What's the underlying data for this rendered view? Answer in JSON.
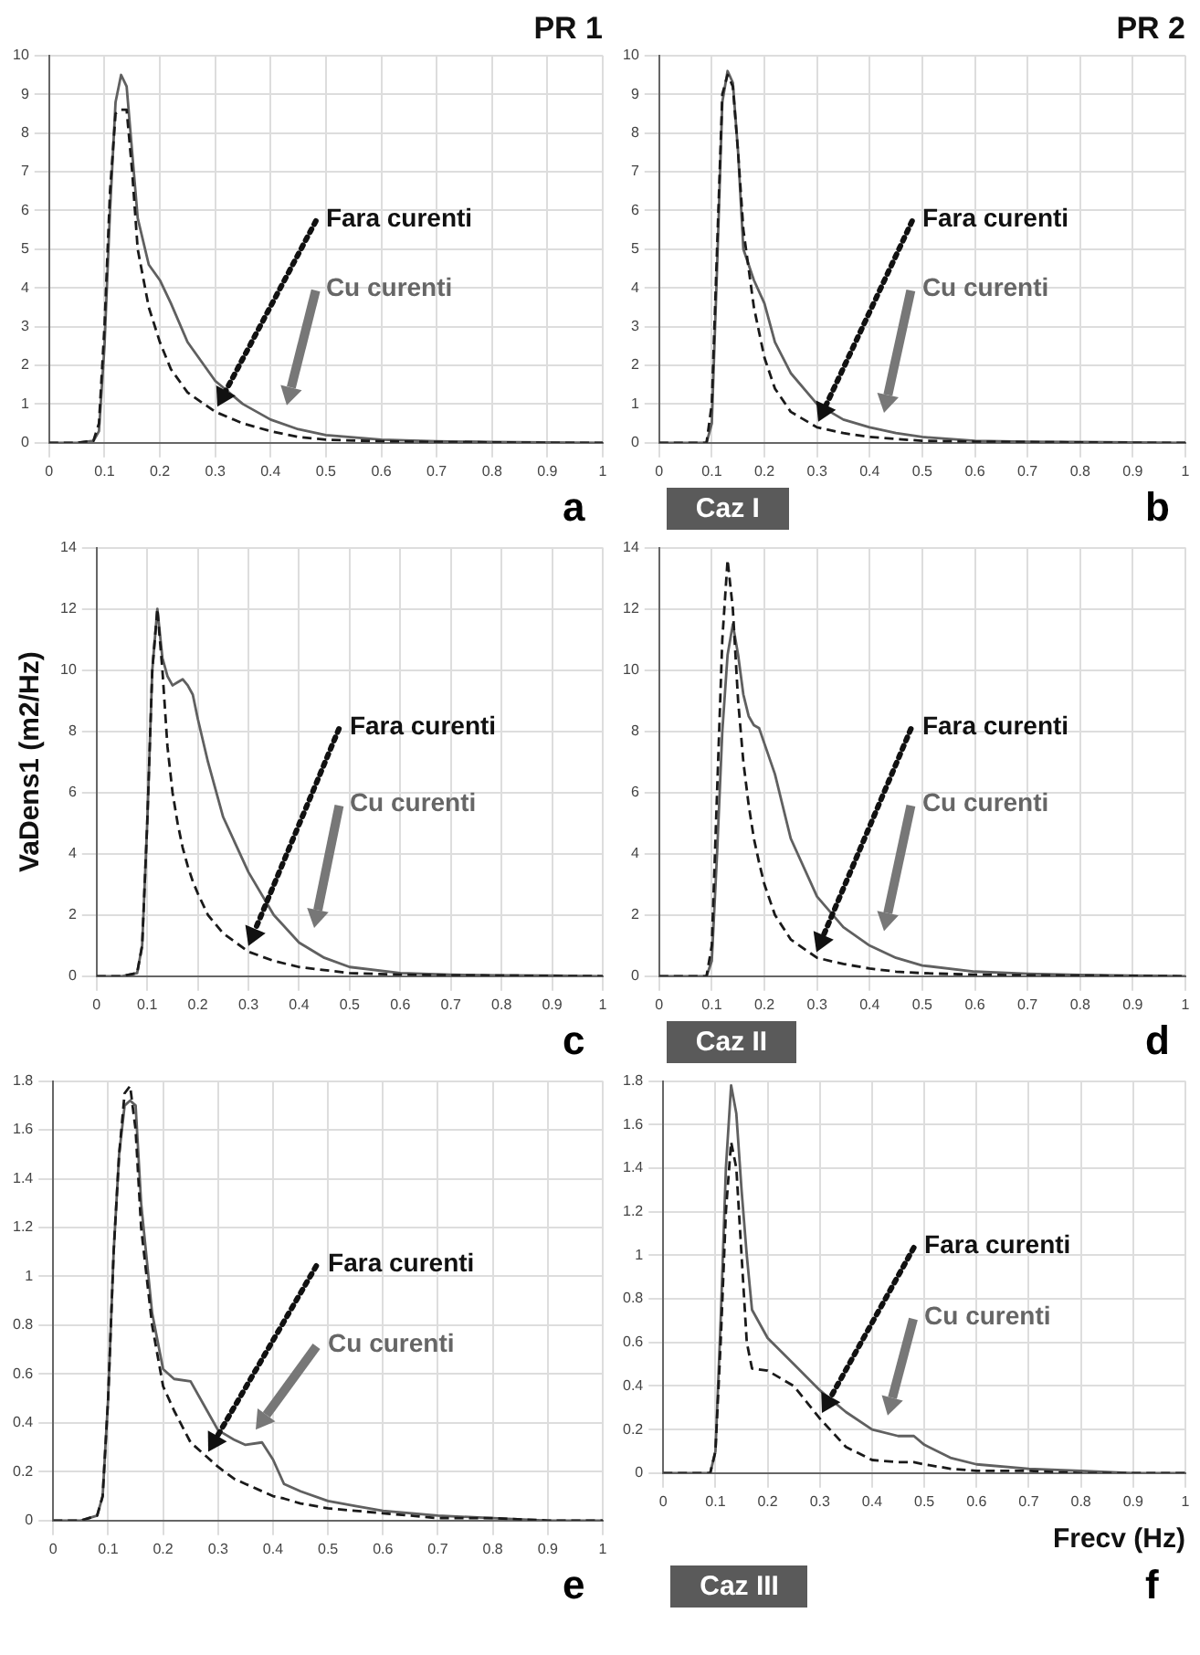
{
  "chart_data": [
    {
      "type": "line",
      "title": "PR 1",
      "annotations": [
        "a"
      ],
      "marker": "none",
      "grid": true,
      "xlim": [
        0,
        1
      ],
      "xticks": [
        0,
        0.1,
        0.2,
        0.3,
        0.4,
        0.5,
        0.6,
        0.7,
        0.8,
        0.9,
        1
      ],
      "ylim": [
        0,
        10
      ],
      "yticks": [
        0,
        1,
        2,
        3,
        4,
        5,
        6,
        7,
        8,
        9,
        10
      ],
      "x": [
        0,
        0.05,
        0.08,
        0.09,
        0.1,
        0.11,
        0.12,
        0.13,
        0.14,
        0.15,
        0.16,
        0.18,
        0.2,
        0.22,
        0.25,
        0.3,
        0.35,
        0.4,
        0.45,
        0.5,
        0.6,
        0.7,
        0.8,
        0.9,
        1
      ],
      "series": [
        {
          "name": "Fara curenti",
          "color": "#1a1a1a",
          "line_style": "dashed",
          "values": [
            0,
            0,
            0.05,
            0.5,
            3,
            6.5,
            8.5,
            8.6,
            8.6,
            7,
            5,
            3.5,
            2.6,
            1.9,
            1.3,
            0.8,
            0.5,
            0.3,
            0.15,
            0.08,
            0.04,
            0.02,
            0.01,
            0,
            0
          ]
        },
        {
          "name": "Cu curenti",
          "color": "#606060",
          "line_style": "solid",
          "values": [
            0,
            0,
            0.05,
            0.3,
            2.5,
            6,
            8.8,
            9.5,
            9.2,
            7.5,
            5.8,
            4.6,
            4.2,
            3.6,
            2.6,
            1.6,
            1,
            0.6,
            0.35,
            0.2,
            0.08,
            0.04,
            0.02,
            0.01,
            0
          ]
        }
      ]
    },
    {
      "type": "line",
      "title": "PR 2",
      "annotations": [
        "b",
        "Caz I"
      ],
      "marker": "none",
      "grid": true,
      "xlim": [
        0,
        1
      ],
      "xticks": [
        0,
        0.1,
        0.2,
        0.3,
        0.4,
        0.5,
        0.6,
        0.7,
        0.8,
        0.9,
        1
      ],
      "ylim": [
        0,
        10
      ],
      "yticks": [
        0,
        1,
        2,
        3,
        4,
        5,
        6,
        7,
        8,
        9,
        10
      ],
      "x": [
        0,
        0.05,
        0.08,
        0.09,
        0.1,
        0.11,
        0.12,
        0.13,
        0.14,
        0.15,
        0.16,
        0.18,
        0.2,
        0.22,
        0.25,
        0.3,
        0.35,
        0.4,
        0.45,
        0.5,
        0.6,
        0.7,
        0.8,
        0.9,
        1
      ],
      "series": [
        {
          "name": "Fara curenti",
          "color": "#1a1a1a",
          "line_style": "dashed",
          "values": [
            0,
            0,
            0,
            0,
            1,
            5,
            9,
            9.5,
            9.2,
            7.5,
            5.5,
            3.5,
            2.2,
            1.4,
            0.8,
            0.4,
            0.25,
            0.15,
            0.1,
            0.05,
            0.03,
            0.02,
            0.01,
            0,
            0
          ]
        },
        {
          "name": "Cu curenti",
          "color": "#606060",
          "line_style": "solid",
          "values": [
            0,
            0,
            0,
            0,
            0.5,
            4.5,
            8.8,
            9.6,
            9.3,
            7.5,
            5,
            4.2,
            3.6,
            2.6,
            1.8,
            1,
            0.6,
            0.4,
            0.25,
            0.15,
            0.05,
            0.03,
            0.02,
            0.01,
            0
          ]
        }
      ]
    },
    {
      "type": "line",
      "ylabel": "VaDens1 (m2/Hz)",
      "annotations": [
        "c"
      ],
      "marker": "none",
      "grid": true,
      "xlim": [
        0,
        1
      ],
      "xticks": [
        0,
        0.1,
        0.2,
        0.3,
        0.4,
        0.5,
        0.6,
        0.7,
        0.8,
        0.9,
        1
      ],
      "ylim": [
        0,
        14
      ],
      "yticks": [
        0,
        2,
        4,
        6,
        8,
        10,
        12,
        14
      ],
      "x": [
        0,
        0.05,
        0.08,
        0.09,
        0.1,
        0.11,
        0.12,
        0.13,
        0.14,
        0.15,
        0.16,
        0.17,
        0.18,
        0.19,
        0.2,
        0.22,
        0.25,
        0.3,
        0.35,
        0.4,
        0.45,
        0.5,
        0.6,
        0.7,
        0.8,
        0.9,
        1
      ],
      "series": [
        {
          "name": "Fara curenti",
          "color": "#1a1a1a",
          "line_style": "dashed",
          "values": [
            0,
            0,
            0.1,
            1,
            5,
            10,
            12,
            10,
            7.5,
            6,
            5,
            4.2,
            3.6,
            3.1,
            2.7,
            2,
            1.4,
            0.8,
            0.5,
            0.3,
            0.2,
            0.1,
            0.05,
            0.03,
            0.02,
            0.01,
            0
          ]
        },
        {
          "name": "Cu curenti",
          "color": "#606060",
          "line_style": "solid",
          "values": [
            0,
            0,
            0.1,
            1,
            5,
            10,
            12,
            10.4,
            9.8,
            9.5,
            9.6,
            9.7,
            9.5,
            9.2,
            8.4,
            7,
            5.2,
            3.4,
            2,
            1.1,
            0.6,
            0.3,
            0.1,
            0.05,
            0.03,
            0.02,
            0
          ]
        }
      ]
    },
    {
      "type": "line",
      "annotations": [
        "d",
        "Caz II"
      ],
      "marker": "none",
      "grid": true,
      "xlim": [
        0,
        1
      ],
      "xticks": [
        0,
        0.1,
        0.2,
        0.3,
        0.4,
        0.5,
        0.6,
        0.7,
        0.8,
        0.9,
        1
      ],
      "ylim": [
        0,
        14
      ],
      "yticks": [
        0,
        2,
        4,
        6,
        8,
        10,
        12,
        14
      ],
      "x": [
        0,
        0.05,
        0.08,
        0.09,
        0.1,
        0.11,
        0.12,
        0.13,
        0.14,
        0.15,
        0.16,
        0.17,
        0.18,
        0.19,
        0.2,
        0.22,
        0.25,
        0.3,
        0.35,
        0.4,
        0.45,
        0.5,
        0.6,
        0.7,
        0.8,
        0.9,
        1
      ],
      "series": [
        {
          "name": "Fara curenti",
          "color": "#1a1a1a",
          "line_style": "dashed",
          "values": [
            0,
            0,
            0,
            0,
            1,
            6,
            11,
            13.6,
            12,
            9,
            7,
            5.6,
            4.5,
            3.7,
            3,
            2,
            1.2,
            0.6,
            0.4,
            0.25,
            0.15,
            0.1,
            0.05,
            0.03,
            0.02,
            0.01,
            0
          ]
        },
        {
          "name": "Cu curenti",
          "color": "#606060",
          "line_style": "solid",
          "values": [
            0,
            0,
            0,
            0,
            0.5,
            4,
            8,
            10.5,
            11.5,
            10.5,
            9.2,
            8.5,
            8.2,
            8.1,
            7.6,
            6.6,
            4.5,
            2.6,
            1.6,
            1,
            0.6,
            0.35,
            0.15,
            0.08,
            0.04,
            0.02,
            0
          ]
        }
      ]
    },
    {
      "type": "line",
      "annotations": [
        "e"
      ],
      "marker": "none",
      "grid": true,
      "xlim": [
        0,
        1
      ],
      "xticks": [
        0,
        0.1,
        0.2,
        0.3,
        0.4,
        0.5,
        0.6,
        0.7,
        0.8,
        0.9,
        1
      ],
      "ylim": [
        0,
        1.8
      ],
      "yticks": [
        0,
        0.2,
        0.4,
        0.6,
        0.8,
        1,
        1.2,
        1.4,
        1.6,
        1.8
      ],
      "x": [
        0,
        0.05,
        0.08,
        0.09,
        0.1,
        0.11,
        0.12,
        0.13,
        0.14,
        0.15,
        0.16,
        0.18,
        0.2,
        0.22,
        0.25,
        0.28,
        0.3,
        0.33,
        0.35,
        0.38,
        0.4,
        0.42,
        0.45,
        0.5,
        0.55,
        0.6,
        0.7,
        0.8,
        0.9,
        1
      ],
      "series": [
        {
          "name": "Fara curenti",
          "color": "#1a1a1a",
          "line_style": "dashed",
          "values": [
            0,
            0,
            0.02,
            0.1,
            0.5,
            1.1,
            1.5,
            1.75,
            1.78,
            1.6,
            1.2,
            0.8,
            0.55,
            0.45,
            0.32,
            0.26,
            0.22,
            0.17,
            0.15,
            0.12,
            0.1,
            0.09,
            0.07,
            0.05,
            0.04,
            0.03,
            0.01,
            0.01,
            0,
            0
          ]
        },
        {
          "name": "Cu curenti",
          "color": "#606060",
          "line_style": "solid",
          "values": [
            0,
            0,
            0.02,
            0.1,
            0.5,
            1.1,
            1.5,
            1.7,
            1.72,
            1.7,
            1.3,
            0.85,
            0.62,
            0.58,
            0.57,
            0.45,
            0.37,
            0.33,
            0.31,
            0.32,
            0.25,
            0.15,
            0.12,
            0.08,
            0.06,
            0.04,
            0.02,
            0.01,
            0,
            0
          ]
        }
      ]
    },
    {
      "type": "line",
      "xlabel": "Frecv (Hz)",
      "annotations": [
        "f",
        "Caz III"
      ],
      "marker": "none",
      "grid": true,
      "xlim": [
        0,
        1
      ],
      "xticks": [
        0,
        0.1,
        0.2,
        0.3,
        0.4,
        0.5,
        0.6,
        0.7,
        0.8,
        0.9,
        1
      ],
      "ylim": [
        0,
        1.8
      ],
      "yticks": [
        0,
        0.2,
        0.4,
        0.6,
        0.8,
        1,
        1.2,
        1.4,
        1.6,
        1.8
      ],
      "x": [
        0,
        0.05,
        0.08,
        0.09,
        0.1,
        0.11,
        0.12,
        0.13,
        0.14,
        0.15,
        0.16,
        0.17,
        0.2,
        0.25,
        0.3,
        0.35,
        0.4,
        0.45,
        0.48,
        0.5,
        0.55,
        0.6,
        0.7,
        0.8,
        0.9,
        1
      ],
      "series": [
        {
          "name": "Fara curenti",
          "color": "#1a1a1a",
          "line_style": "dashed",
          "values": [
            0,
            0,
            0,
            0,
            0.1,
            0.6,
            1.2,
            1.52,
            1.4,
            1,
            0.6,
            0.48,
            0.47,
            0.4,
            0.25,
            0.12,
            0.06,
            0.05,
            0.05,
            0.04,
            0.02,
            0.01,
            0.01,
            0,
            0,
            0
          ]
        },
        {
          "name": "Cu curenti",
          "color": "#606060",
          "line_style": "solid",
          "values": [
            0,
            0,
            0,
            0,
            0.1,
            0.7,
            1.4,
            1.78,
            1.65,
            1.3,
            1,
            0.75,
            0.62,
            0.5,
            0.38,
            0.28,
            0.2,
            0.17,
            0.17,
            0.13,
            0.07,
            0.04,
            0.02,
            0.01,
            0,
            0
          ]
        }
      ]
    }
  ]
}
